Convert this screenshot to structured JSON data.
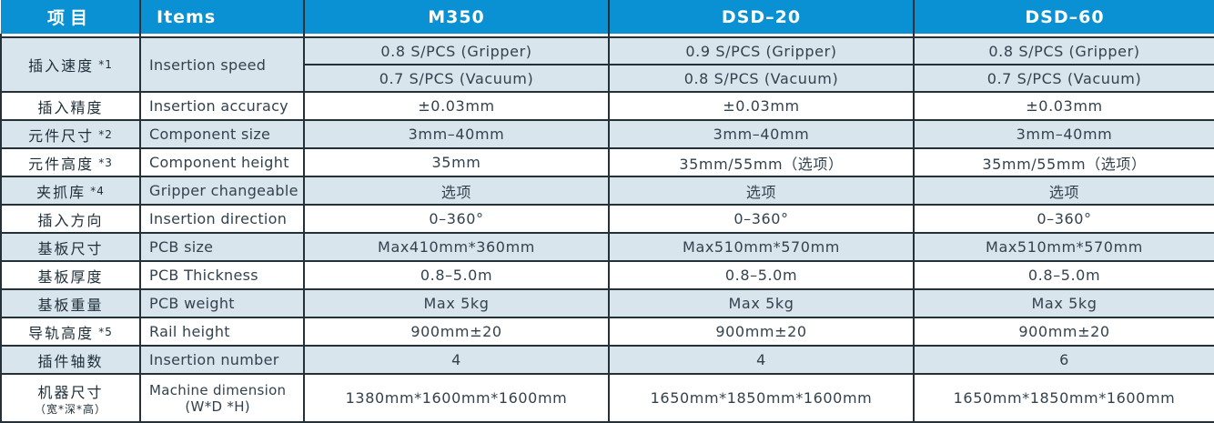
{
  "colors": {
    "header_bg": "#0991d4",
    "band_blue": "#d8e5ed",
    "band_white": "#ffffff",
    "border": "#243138",
    "header_text": "#ffffff",
    "value_text": "#33424d"
  },
  "header": {
    "col_zh": "项目",
    "col_en": "Items",
    "models": [
      "M350",
      "DSD–20",
      "DSD–60"
    ]
  },
  "rows": [
    {
      "zh": "插入速度",
      "note": "*1",
      "en": "Insertion speed",
      "band": "blue",
      "double": true,
      "values": [
        [
          "0.8 S/PCS (Gripper)",
          "0.7 S/PCS (Vacuum)"
        ],
        [
          "0.9 S/PCS (Gripper)",
          "0.8 S/PCS (Vacuum)"
        ],
        [
          "0.8 S/PCS (Gripper)",
          "0.7 S/PCS (Vacuum)"
        ]
      ]
    },
    {
      "zh": "插入精度",
      "note": "",
      "en": "Insertion accuracy",
      "band": "white",
      "values": [
        "±0.03mm",
        "±0.03mm",
        "±0.03mm"
      ]
    },
    {
      "zh": "元件尺寸",
      "note": "*2",
      "en": "Component size",
      "band": "blue",
      "values": [
        "3mm–40mm",
        "3mm–40mm",
        "3mm–40mm"
      ]
    },
    {
      "zh": "元件高度",
      "note": "*3",
      "en": "Component height",
      "band": "white",
      "values": [
        "35mm",
        "35mm/55mm（选项）",
        "35mm/55mm（选项）"
      ]
    },
    {
      "zh": "夹抓库",
      "note": "*4",
      "en": "Gripper changeable",
      "band": "blue",
      "values": [
        "选项",
        "选项",
        "选项"
      ]
    },
    {
      "zh": "插入方向",
      "note": "",
      "en": "Insertion direction",
      "band": "white",
      "values": [
        "0–360°",
        "0–360°",
        "0–360°"
      ]
    },
    {
      "zh": "基板尺寸",
      "note": "",
      "en": "PCB size",
      "band": "blue",
      "values": [
        "Max410mm*360mm",
        "Max510mm*570mm",
        "Max510mm*570mm"
      ]
    },
    {
      "zh": "基板厚度",
      "note": "",
      "en": "PCB Thickness",
      "band": "white",
      "values": [
        "0.8–5.0m",
        "0.8–5.0m",
        "0.8–5.0m"
      ]
    },
    {
      "zh": "基板重量",
      "note": "",
      "en": "PCB weight",
      "band": "blue",
      "values": [
        "Max 5kg",
        "Max 5kg",
        "Max 5kg"
      ]
    },
    {
      "zh": "导轨高度",
      "note": "*5",
      "en": "Rail height",
      "band": "white",
      "values": [
        "900mm±20",
        "900mm±20",
        "900mm±20"
      ]
    },
    {
      "zh": "插件轴数",
      "note": "",
      "en": "Insertion number",
      "band": "blue",
      "values": [
        "4",
        "4",
        "6"
      ]
    },
    {
      "zh": "机器尺寸",
      "zh_sub": "（宽*深*高）",
      "note": "",
      "en": "Machine dimension",
      "en_sub": "(W*D *H)",
      "band": "white",
      "tall": true,
      "values": [
        "1380mm*1600mm*1600mm",
        "1650mm*1850mm*1600mm",
        "1650mm*1850mm*1600mm"
      ]
    }
  ]
}
